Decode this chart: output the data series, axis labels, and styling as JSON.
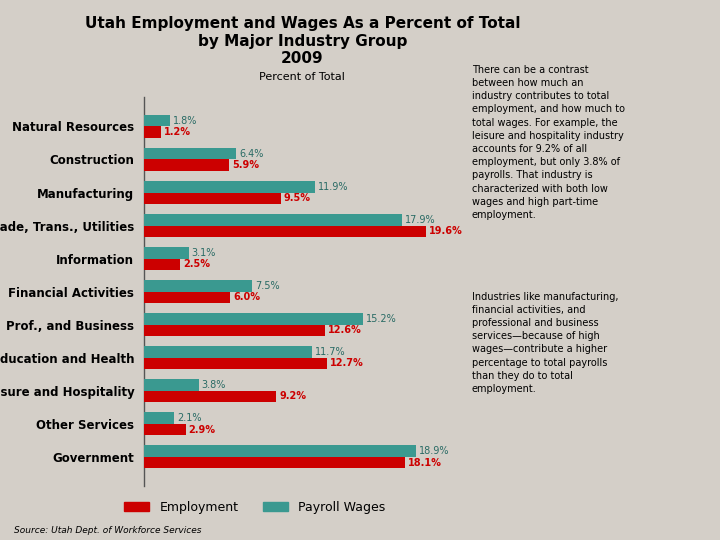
{
  "title": "Utah Employment and Wages As a Percent of Total\nby Major Industry Group\n2009",
  "xlabel": "Percent of Total",
  "background_color": "#d4cfc8",
  "categories": [
    "Natural Resources",
    "Construction",
    "Manufacturing",
    "Trade, Trans., Utilities",
    "Information",
    "Financial Activities",
    "Prof., and Business",
    "Education and Health",
    "Leisure and Hospitality",
    "Other Services",
    "Government"
  ],
  "employment": [
    1.2,
    5.9,
    9.5,
    19.6,
    2.5,
    6.0,
    12.6,
    12.7,
    9.2,
    2.9,
    18.1
  ],
  "payroll": [
    1.8,
    6.4,
    11.9,
    17.9,
    3.1,
    7.5,
    15.2,
    11.7,
    3.8,
    2.1,
    18.9
  ],
  "employment_color": "#cc0000",
  "payroll_color": "#3a9990",
  "annotation_text_1": "There can be a contrast\nbetween how much an\nindustry contributes to total\nemployment, and how much to\ntotal wages. For example, the\nleisure and hospitality industry\naccounts for 9.2% of all\nemployment, but only 3.8% of\npayrolls. That industry is\ncharacterized with both low\nwages and high part-time\nemployment.",
  "annotation_text_2": "Industries like manufacturing,\nfinancial activities, and\nprofessional and business\nservices—because of high\nwages—contribute a higher\npercentage to total payrolls\nthan they do to total\nemployment.",
  "source": "Source: Utah Dept. of Workforce Services",
  "bar_height": 0.35,
  "category_fontsize": 8.5,
  "value_fontsize": 7,
  "annotation_fontsize": 7
}
